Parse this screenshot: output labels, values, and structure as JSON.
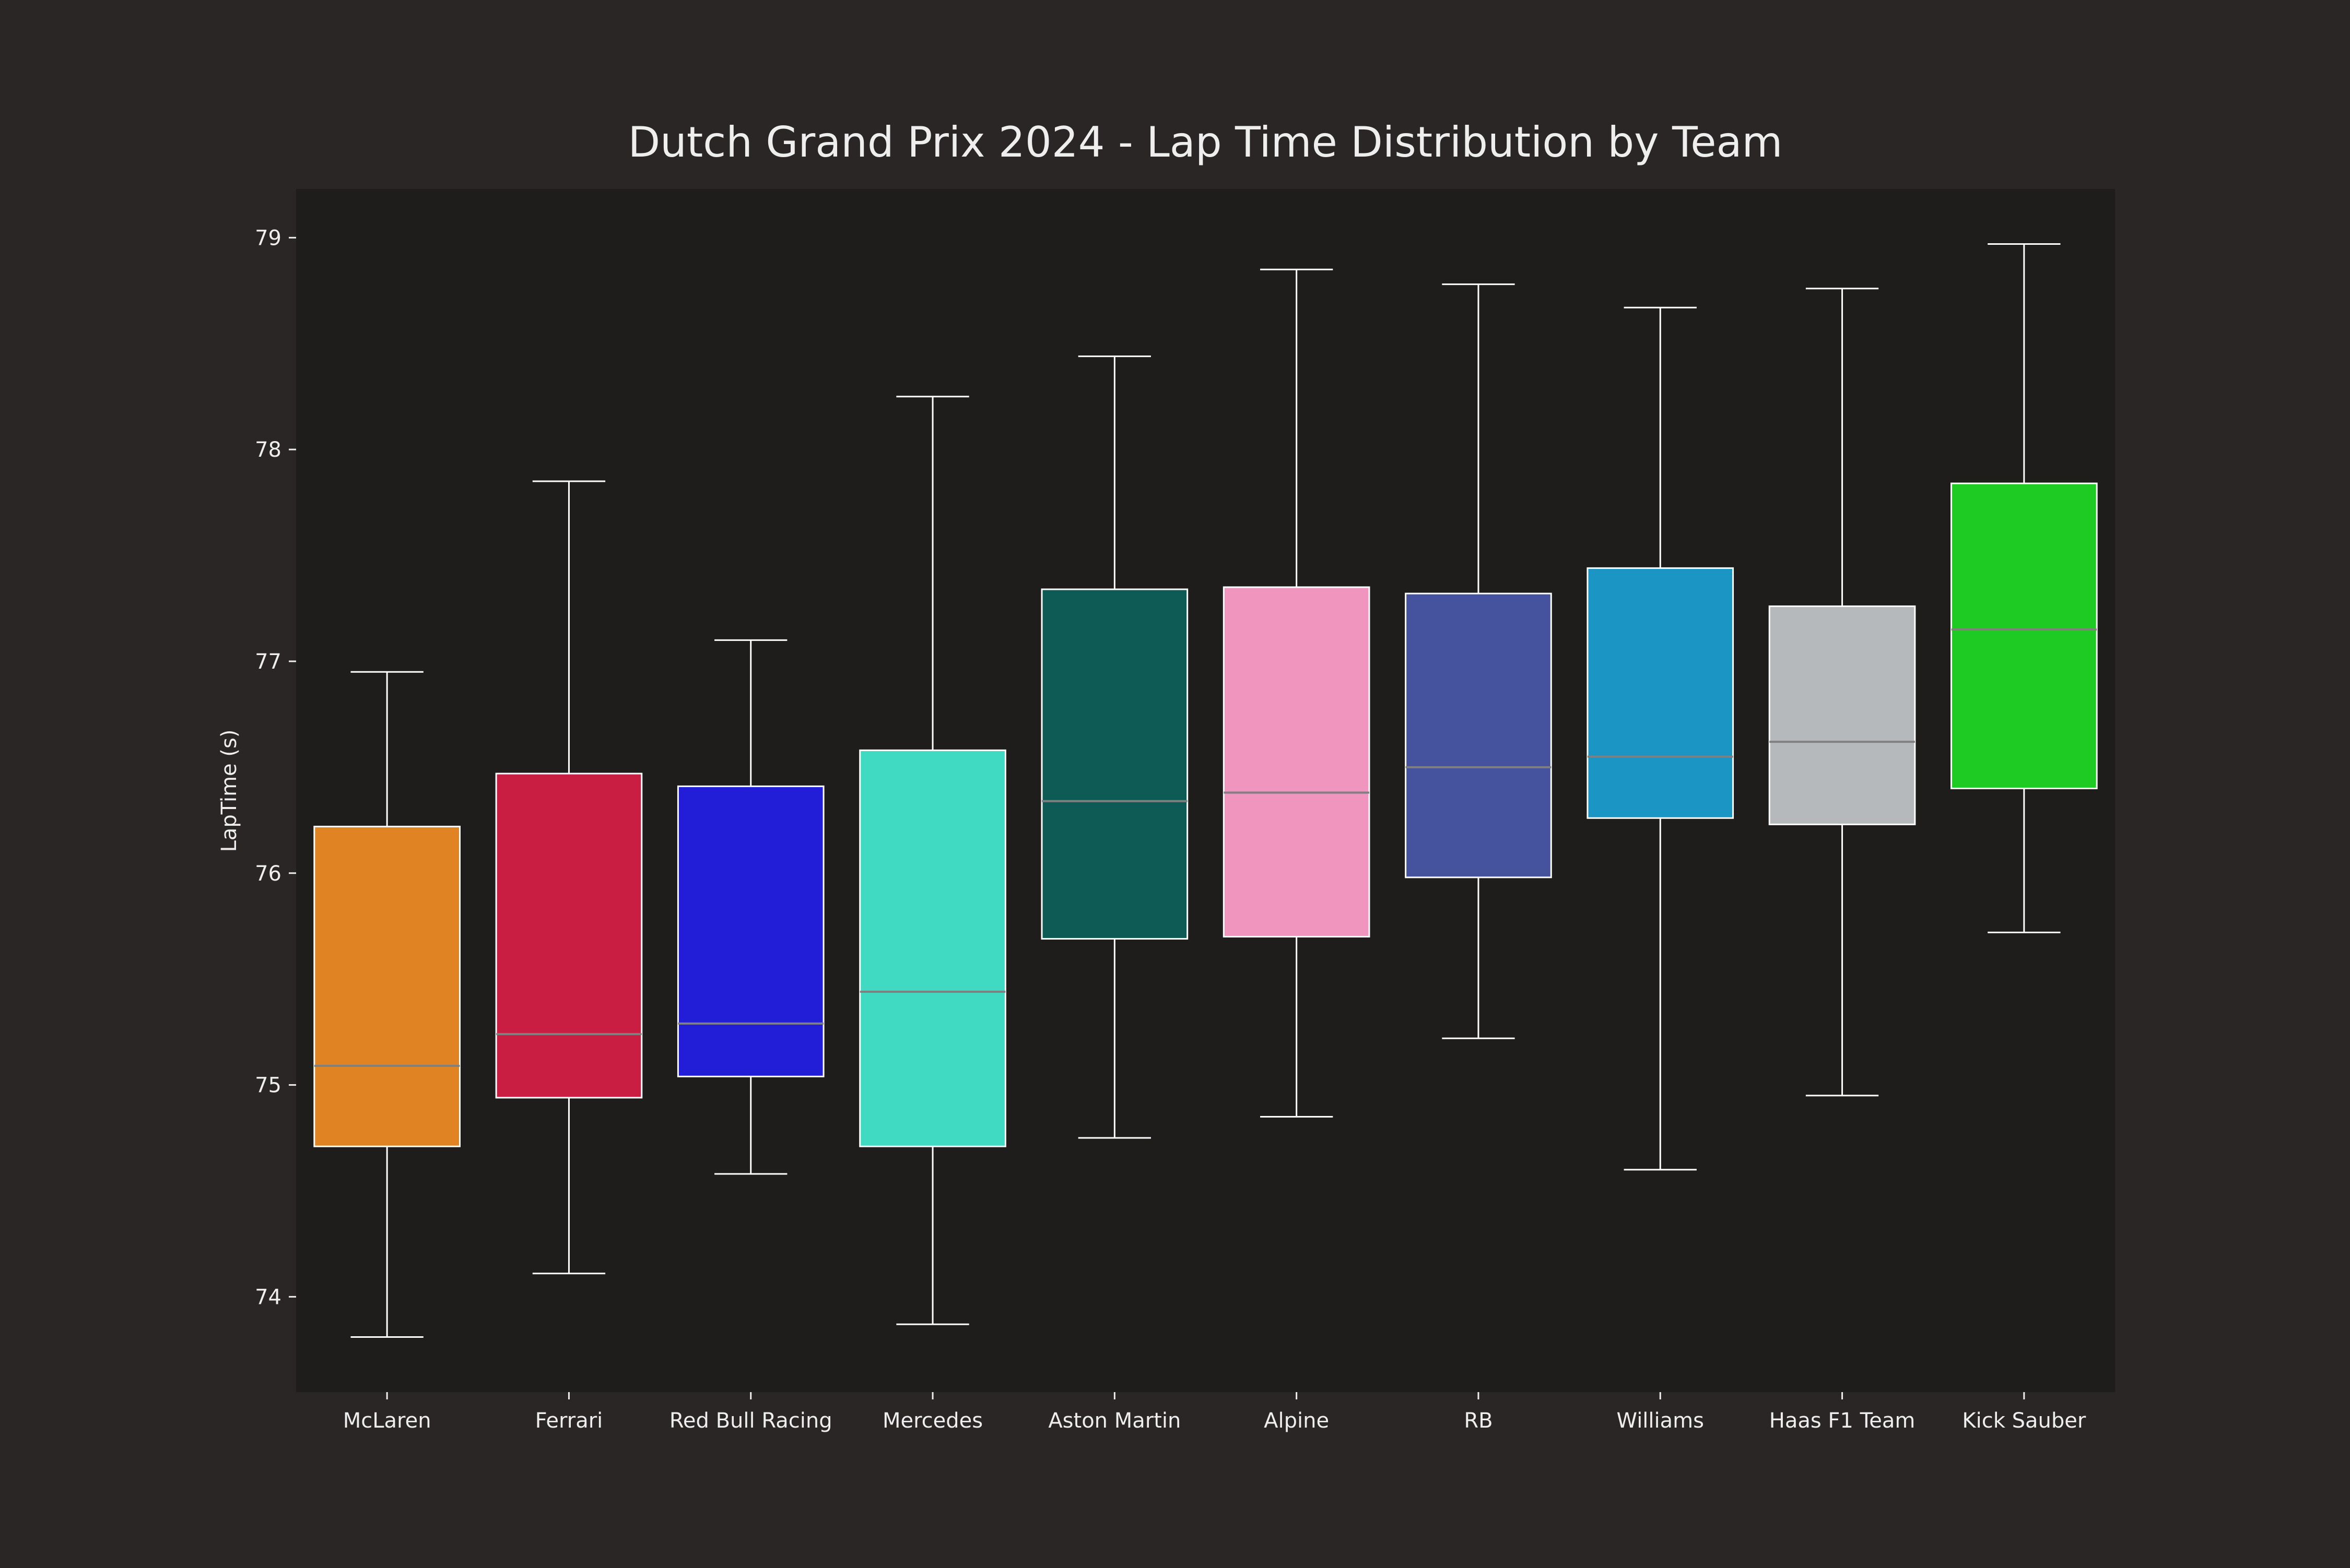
{
  "chart_data": {
    "type": "box",
    "title": "Dutch Grand Prix 2024 - Lap Time Distribution by Team",
    "xlabel": "",
    "ylabel": "LapTime (s)",
    "ylim": [
      73.55,
      79.23
    ],
    "yticks": [
      74,
      75,
      76,
      77,
      78,
      79
    ],
    "grid": false,
    "colors": {
      "figure_background": "#292625",
      "plot_background": "#1e1d1c",
      "text": "#eeeeee",
      "whisker": "#ffffff",
      "median": "#808080"
    },
    "categories": [
      "McLaren",
      "Ferrari",
      "Red Bull Racing",
      "Mercedes",
      "Aston Martin",
      "Alpine",
      "RB",
      "Williams",
      "Haas F1 Team",
      "Kick Sauber"
    ],
    "boxes": [
      {
        "team": "McLaren",
        "color": "#e08322",
        "min": 73.81,
        "q1": 74.71,
        "median": 75.09,
        "q3": 76.22,
        "max": 76.95
      },
      {
        "team": "Ferrari",
        "color": "#c91d42",
        "min": 74.11,
        "q1": 74.94,
        "median": 75.24,
        "q3": 76.47,
        "max": 77.85
      },
      {
        "team": "Red Bull Racing",
        "color": "#221dd6",
        "min": 74.58,
        "q1": 75.04,
        "median": 75.29,
        "q3": 76.41,
        "max": 77.1
      },
      {
        "team": "Mercedes",
        "color": "#40d9c2",
        "min": 73.87,
        "q1": 74.71,
        "median": 75.44,
        "q3": 76.58,
        "max": 78.25
      },
      {
        "team": "Aston Martin",
        "color": "#0e5b55",
        "min": 74.75,
        "q1": 75.69,
        "median": 76.34,
        "q3": 77.34,
        "max": 78.44
      },
      {
        "team": "Alpine",
        "color": "#ef95be",
        "min": 74.85,
        "q1": 75.7,
        "median": 76.38,
        "q3": 77.35,
        "max": 78.85
      },
      {
        "team": "RB",
        "color": "#45539e",
        "min": 75.22,
        "q1": 75.98,
        "median": 76.5,
        "q3": 77.32,
        "max": 78.78
      },
      {
        "team": "Williams",
        "color": "#1b95c4",
        "min": 74.6,
        "q1": 76.26,
        "median": 76.55,
        "q3": 77.44,
        "max": 78.67
      },
      {
        "team": "Haas F1 Team",
        "color": "#b6b9bb",
        "min": 74.95,
        "q1": 76.23,
        "median": 76.62,
        "q3": 77.26,
        "max": 78.76
      },
      {
        "team": "Kick Sauber",
        "color": "#1ecb22",
        "min": 75.72,
        "q1": 76.4,
        "median": 77.15,
        "q3": 77.84,
        "max": 78.97
      }
    ]
  }
}
